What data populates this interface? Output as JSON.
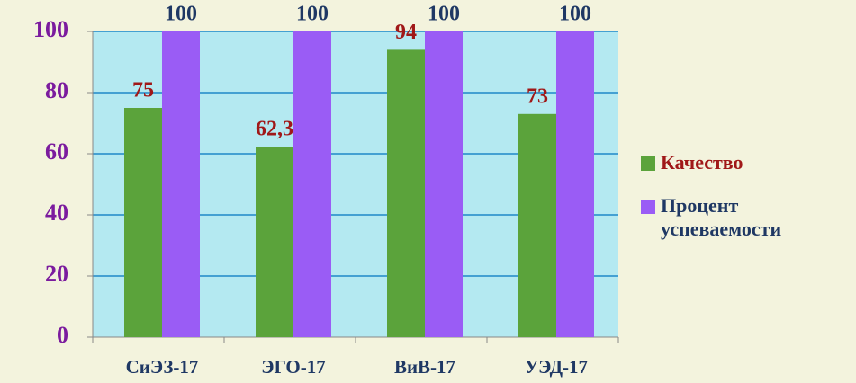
{
  "chart_data": {
    "type": "bar",
    "categories": [
      "СиЭЗ-17",
      "ЭГО-17",
      "ВиВ-17",
      "УЭД-17"
    ],
    "series": [
      {
        "name": "Качество",
        "color": "#5ba33b",
        "values": [
          75,
          62.3,
          94,
          73
        ],
        "value_labels": [
          "75",
          "62,3",
          "94",
          "73"
        ],
        "label_color": "#a01818"
      },
      {
        "name": "Процент успеваемости",
        "color": "#9a5cf5",
        "values": [
          100,
          100,
          100,
          100
        ],
        "label_color": "#1f3864"
      }
    ],
    "ylim": [
      0,
      100
    ],
    "yticks": [
      0,
      20,
      40,
      60,
      80,
      100
    ],
    "grid": true,
    "plot_background": "#b4e9f1"
  }
}
